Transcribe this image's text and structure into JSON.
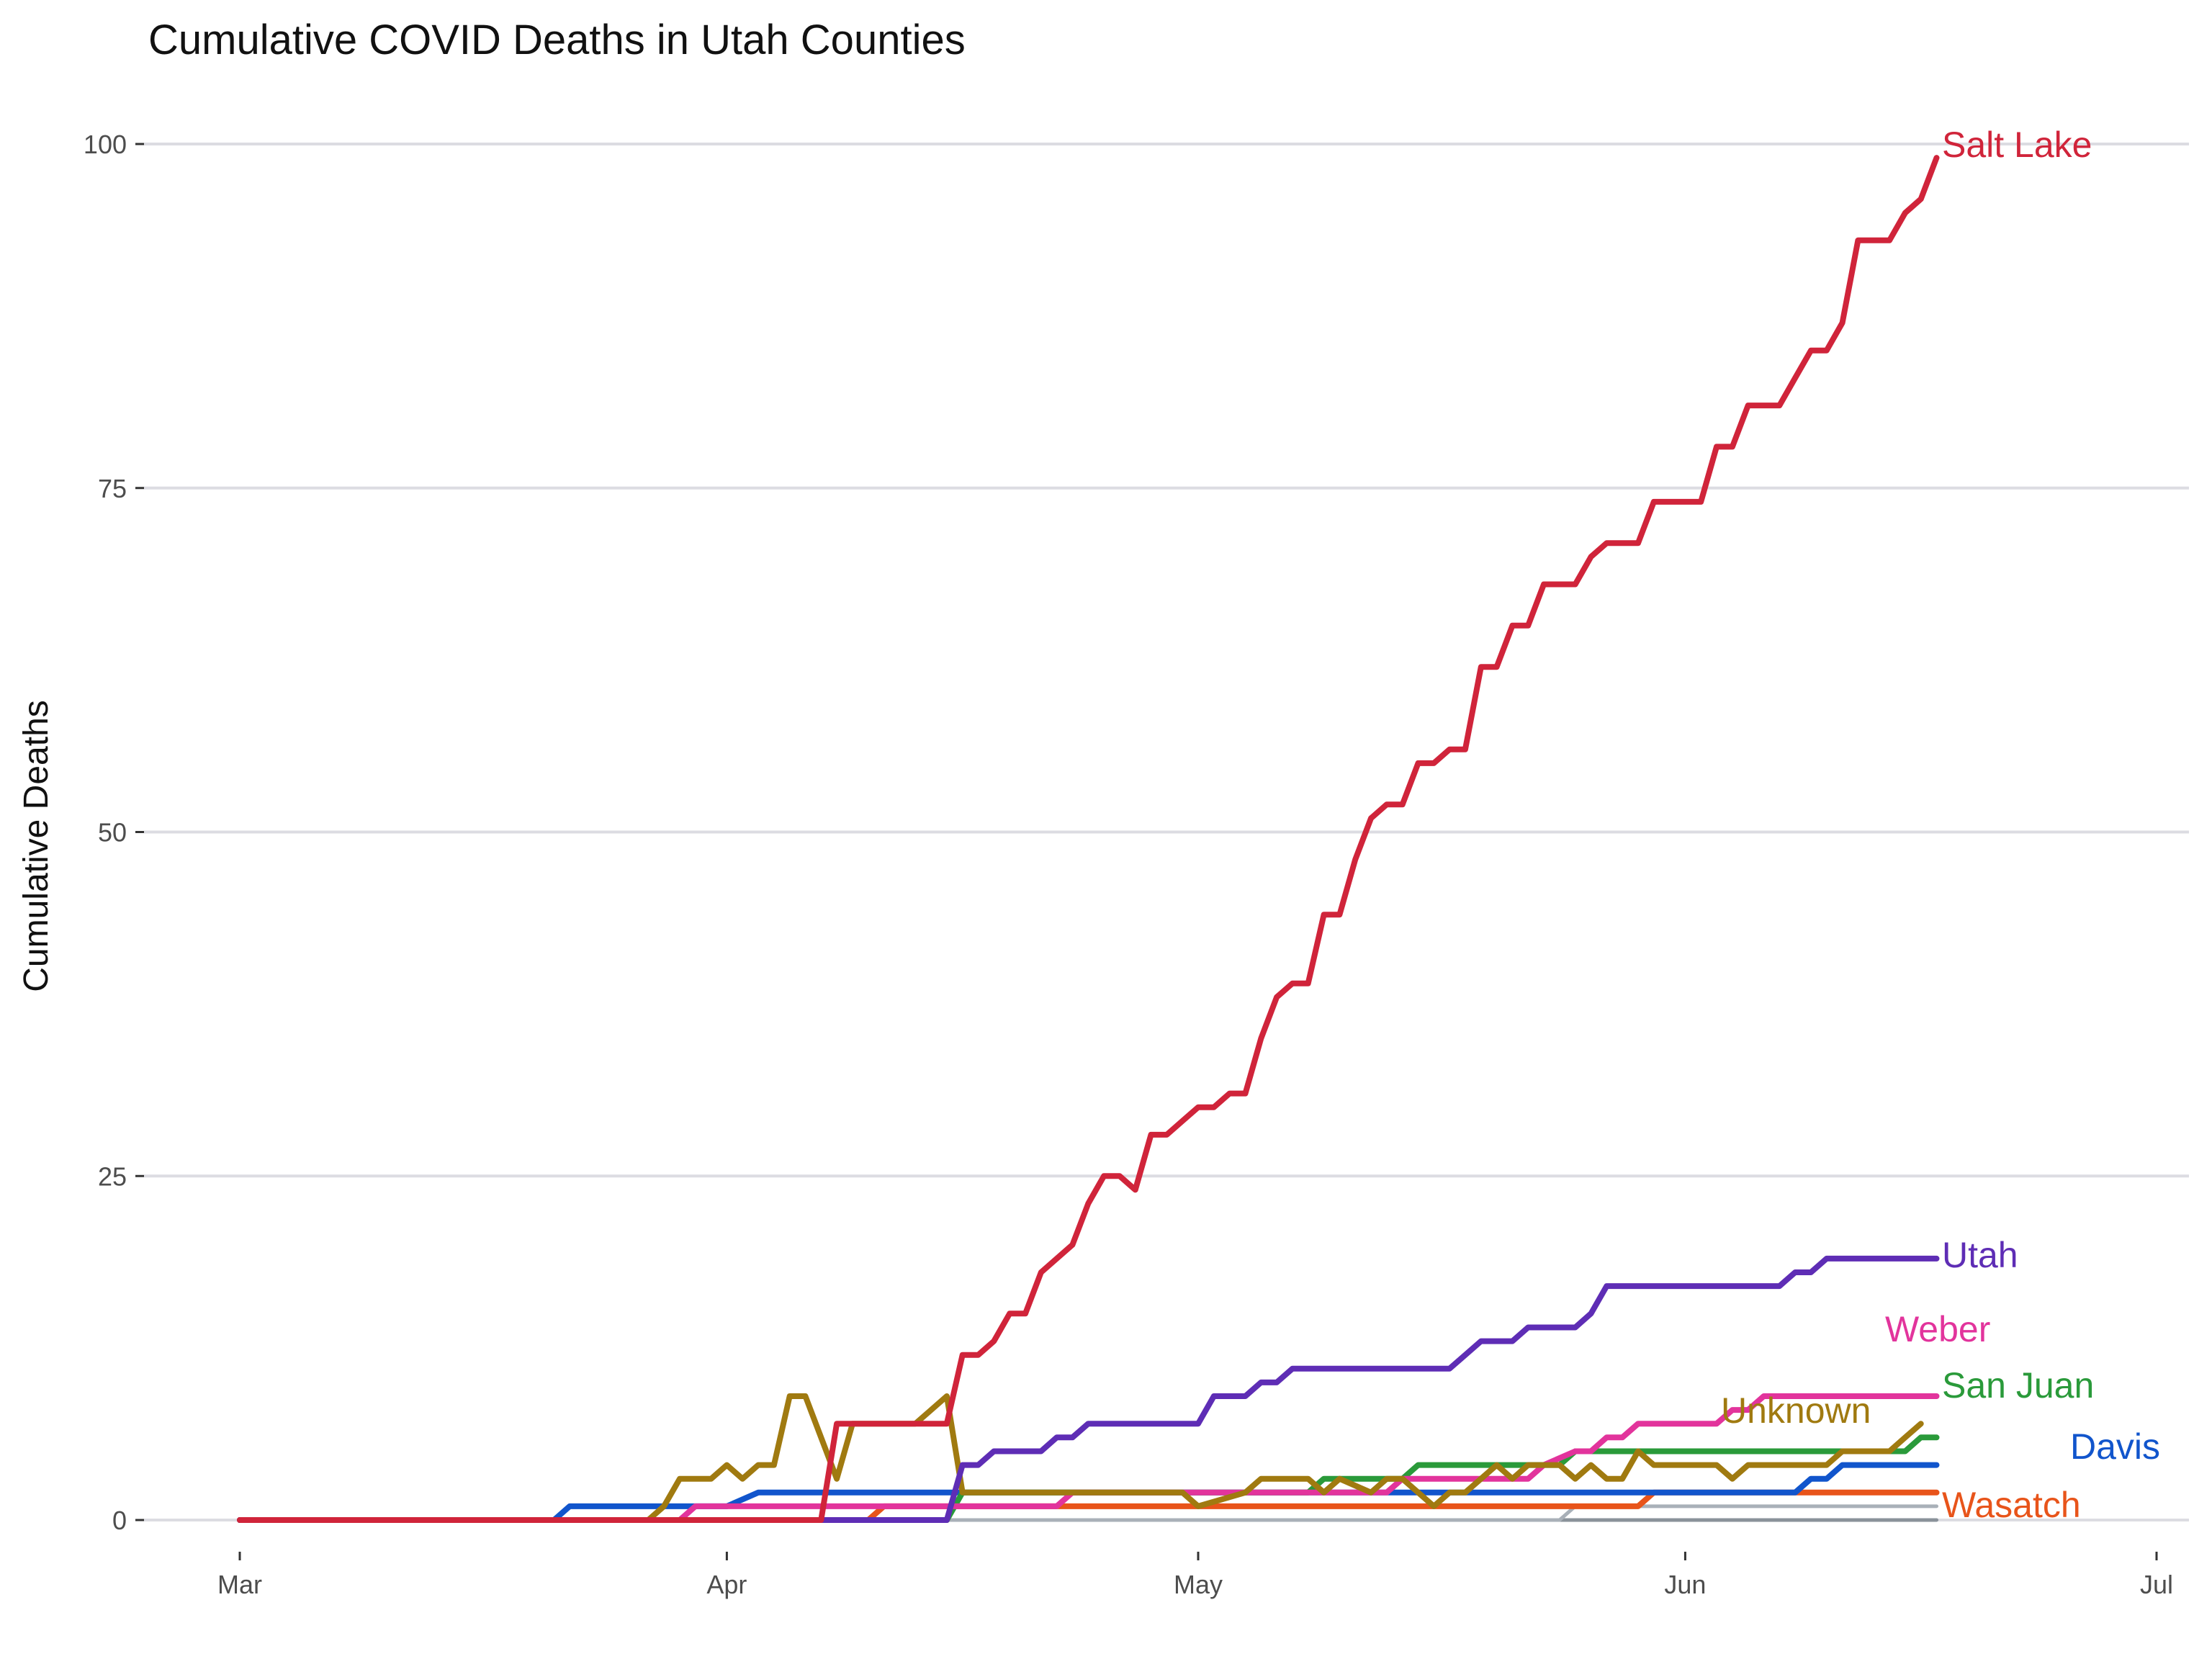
{
  "chart_data": {
    "type": "line",
    "title": "Cumulative COVID Deaths in Utah Counties",
    "xlabel": "",
    "ylabel": "Cumulative Deaths",
    "x_range": [
      "2020-03-01",
      "2020-07-01"
    ],
    "ylim": [
      -3,
      103
    ],
    "x_ticks": [
      {
        "date": "2020-03-01",
        "label": "Mar"
      },
      {
        "date": "2020-04-01",
        "label": "Apr"
      },
      {
        "date": "2020-05-01",
        "label": "May"
      },
      {
        "date": "2020-06-01",
        "label": "Jun"
      },
      {
        "date": "2020-07-01",
        "label": "Jul"
      }
    ],
    "y_ticks": [
      0,
      25,
      50,
      75,
      100
    ],
    "grid": "horizontal major gridlines",
    "legend": "direct labels at right end of each series",
    "series": [
      {
        "name": "",
        "color": "#8a929a",
        "points": [
          [
            "2020-03-01",
            0
          ],
          [
            "2020-06-17",
            0
          ]
        ]
      },
      {
        "name": "",
        "color": "#a9b0b8",
        "points": [
          [
            "2020-03-01",
            0
          ],
          [
            "2020-05-24",
            0
          ],
          [
            "2020-05-25",
            1
          ],
          [
            "2020-06-17",
            1
          ]
        ]
      },
      {
        "name": "Wasatch",
        "color": "#e8541a",
        "points": [
          [
            "2020-03-01",
            0
          ],
          [
            "2020-04-10",
            0
          ],
          [
            "2020-04-11",
            1
          ],
          [
            "2020-05-29",
            1
          ],
          [
            "2020-05-30",
            2
          ],
          [
            "2020-06-17",
            2
          ]
        ]
      },
      {
        "name": "Davis",
        "color": "#1155cc",
        "points": [
          [
            "2020-03-01",
            0
          ],
          [
            "2020-03-21",
            0
          ],
          [
            "2020-03-22",
            1
          ],
          [
            "2020-04-01",
            1
          ],
          [
            "2020-04-03",
            2
          ],
          [
            "2020-06-06",
            2
          ],
          [
            "2020-06-08",
            2
          ],
          [
            "2020-06-09",
            3
          ],
          [
            "2020-06-10",
            3
          ],
          [
            "2020-06-11",
            4
          ],
          [
            "2020-06-17",
            4
          ]
        ]
      },
      {
        "name": "San Juan",
        "color": "#2a9a3a",
        "points": [
          [
            "2020-03-01",
            0
          ],
          [
            "2020-04-15",
            0
          ],
          [
            "2020-04-16",
            2
          ],
          [
            "2020-05-08",
            2
          ],
          [
            "2020-05-09",
            3
          ],
          [
            "2020-05-14",
            3
          ],
          [
            "2020-05-15",
            4
          ],
          [
            "2020-05-24",
            4
          ],
          [
            "2020-05-25",
            5
          ],
          [
            "2020-06-15",
            5
          ],
          [
            "2020-06-16",
            6
          ],
          [
            "2020-06-17",
            6
          ]
        ]
      },
      {
        "name": "Weber",
        "color": "#e2349c",
        "points": [
          [
            "2020-03-01",
            0
          ],
          [
            "2020-03-29",
            0
          ],
          [
            "2020-03-30",
            1
          ],
          [
            "2020-04-22",
            1
          ],
          [
            "2020-04-23",
            2
          ],
          [
            "2020-05-13",
            2
          ],
          [
            "2020-05-14",
            3
          ],
          [
            "2020-05-22",
            3
          ],
          [
            "2020-05-23",
            4
          ],
          [
            "2020-05-25",
            5
          ],
          [
            "2020-05-26",
            5
          ],
          [
            "2020-05-27",
            6
          ],
          [
            "2020-05-28",
            6
          ],
          [
            "2020-05-29",
            7
          ],
          [
            "2020-06-03",
            7
          ],
          [
            "2020-06-04",
            8
          ],
          [
            "2020-06-05",
            8
          ],
          [
            "2020-06-06",
            9
          ],
          [
            "2020-06-17",
            9
          ]
        ]
      },
      {
        "name": "Unknown",
        "color": "#a07a10",
        "points": [
          [
            "2020-03-01",
            0
          ],
          [
            "2020-03-27",
            0
          ],
          [
            "2020-03-28",
            1
          ],
          [
            "2020-03-29",
            3
          ],
          [
            "2020-03-31",
            3
          ],
          [
            "2020-04-01",
            4
          ],
          [
            "2020-04-02",
            3
          ],
          [
            "2020-04-03",
            4
          ],
          [
            "2020-04-04",
            4
          ],
          [
            "2020-04-05",
            9
          ],
          [
            "2020-04-06",
            9
          ],
          [
            "2020-04-07",
            6
          ],
          [
            "2020-04-08",
            3
          ],
          [
            "2020-04-09",
            7
          ],
          [
            "2020-04-13",
            7
          ],
          [
            "2020-04-14",
            8
          ],
          [
            "2020-04-15",
            9
          ],
          [
            "2020-04-16",
            2
          ],
          [
            "2020-04-19",
            2
          ],
          [
            "2020-04-20",
            2
          ],
          [
            "2020-04-25",
            2
          ],
          [
            "2020-04-30",
            2
          ],
          [
            "2020-05-01",
            1
          ],
          [
            "2020-05-04",
            2
          ],
          [
            "2020-05-05",
            3
          ],
          [
            "2020-05-08",
            3
          ],
          [
            "2020-05-09",
            2
          ],
          [
            "2020-05-10",
            3
          ],
          [
            "2020-05-12",
            2
          ],
          [
            "2020-05-13",
            3
          ],
          [
            "2020-05-14",
            3
          ],
          [
            "2020-05-15",
            2
          ],
          [
            "2020-05-16",
            1
          ],
          [
            "2020-05-17",
            2
          ],
          [
            "2020-05-18",
            2
          ],
          [
            "2020-05-19",
            3
          ],
          [
            "2020-05-20",
            4
          ],
          [
            "2020-05-21",
            3
          ],
          [
            "2020-05-22",
            4
          ],
          [
            "2020-05-24",
            4
          ],
          [
            "2020-05-25",
            3
          ],
          [
            "2020-05-26",
            4
          ],
          [
            "2020-05-27",
            3
          ],
          [
            "2020-05-28",
            3
          ],
          [
            "2020-05-29",
            5
          ],
          [
            "2020-05-30",
            4
          ],
          [
            "2020-06-03",
            4
          ],
          [
            "2020-06-04",
            3
          ],
          [
            "2020-06-05",
            4
          ],
          [
            "2020-06-10",
            4
          ],
          [
            "2020-06-11",
            5
          ],
          [
            "2020-06-14",
            5
          ],
          [
            "2020-06-15",
            6
          ],
          [
            "2020-06-16",
            7
          ]
        ]
      },
      {
        "name": "Utah",
        "color": "#5e2db5",
        "points": [
          [
            "2020-03-01",
            0
          ],
          [
            "2020-04-15",
            0
          ],
          [
            "2020-04-16",
            4
          ],
          [
            "2020-04-17",
            4
          ],
          [
            "2020-04-18",
            5
          ],
          [
            "2020-04-21",
            5
          ],
          [
            "2020-04-22",
            6
          ],
          [
            "2020-04-23",
            6
          ],
          [
            "2020-04-24",
            7
          ],
          [
            "2020-04-30",
            7
          ],
          [
            "2020-05-01",
            7
          ],
          [
            "2020-05-02",
            9
          ],
          [
            "2020-05-04",
            9
          ],
          [
            "2020-05-05",
            10
          ],
          [
            "2020-05-06",
            10
          ],
          [
            "2020-05-07",
            11
          ],
          [
            "2020-05-17",
            11
          ],
          [
            "2020-05-19",
            13
          ],
          [
            "2020-05-21",
            13
          ],
          [
            "2020-05-22",
            14
          ],
          [
            "2020-05-25",
            14
          ],
          [
            "2020-05-26",
            15
          ],
          [
            "2020-05-27",
            17
          ],
          [
            "2020-06-07",
            17
          ],
          [
            "2020-06-08",
            18
          ],
          [
            "2020-06-09",
            18
          ],
          [
            "2020-06-10",
            19
          ],
          [
            "2020-06-17",
            19
          ]
        ]
      },
      {
        "name": "Salt Lake",
        "color": "#d0243a",
        "points": [
          [
            "2020-03-01",
            0
          ],
          [
            "2020-04-07",
            0
          ],
          [
            "2020-04-08",
            7
          ],
          [
            "2020-04-15",
            7
          ],
          [
            "2020-04-16",
            12
          ],
          [
            "2020-04-17",
            12
          ],
          [
            "2020-04-18",
            13
          ],
          [
            "2020-04-19",
            15
          ],
          [
            "2020-04-20",
            15
          ],
          [
            "2020-04-21",
            18
          ],
          [
            "2020-04-22",
            19
          ],
          [
            "2020-04-23",
            20
          ],
          [
            "2020-04-24",
            23
          ],
          [
            "2020-04-25",
            25
          ],
          [
            "2020-04-26",
            25
          ],
          [
            "2020-04-27",
            24
          ],
          [
            "2020-04-28",
            28
          ],
          [
            "2020-04-29",
            28
          ],
          [
            "2020-04-30",
            29
          ],
          [
            "2020-05-01",
            30
          ],
          [
            "2020-05-02",
            30
          ],
          [
            "2020-05-03",
            31
          ],
          [
            "2020-05-04",
            31
          ],
          [
            "2020-05-05",
            35
          ],
          [
            "2020-05-06",
            38
          ],
          [
            "2020-05-07",
            39
          ],
          [
            "2020-05-08",
            39
          ],
          [
            "2020-05-09",
            44
          ],
          [
            "2020-05-10",
            44
          ],
          [
            "2020-05-11",
            48
          ],
          [
            "2020-05-12",
            51
          ],
          [
            "2020-05-13",
            52
          ],
          [
            "2020-05-14",
            52
          ],
          [
            "2020-05-15",
            55
          ],
          [
            "2020-05-16",
            55
          ],
          [
            "2020-05-17",
            56
          ],
          [
            "2020-05-18",
            56
          ],
          [
            "2020-05-19",
            62
          ],
          [
            "2020-05-20",
            62
          ],
          [
            "2020-05-21",
            65
          ],
          [
            "2020-05-22",
            65
          ],
          [
            "2020-05-23",
            68
          ],
          [
            "2020-05-25",
            68
          ],
          [
            "2020-05-26",
            70
          ],
          [
            "2020-05-27",
            71
          ],
          [
            "2020-05-29",
            71
          ],
          [
            "2020-05-30",
            74
          ],
          [
            "2020-06-02",
            74
          ],
          [
            "2020-06-03",
            78
          ],
          [
            "2020-06-04",
            78
          ],
          [
            "2020-06-05",
            81
          ],
          [
            "2020-06-07",
            81
          ],
          [
            "2020-06-08",
            83
          ],
          [
            "2020-06-09",
            85
          ],
          [
            "2020-06-10",
            85
          ],
          [
            "2020-06-11",
            87
          ],
          [
            "2020-06-12",
            93
          ],
          [
            "2020-06-14",
            93
          ],
          [
            "2020-06-15",
            95
          ],
          [
            "2020-06-16",
            96
          ],
          [
            "2020-06-17",
            99
          ]
        ]
      }
    ]
  }
}
